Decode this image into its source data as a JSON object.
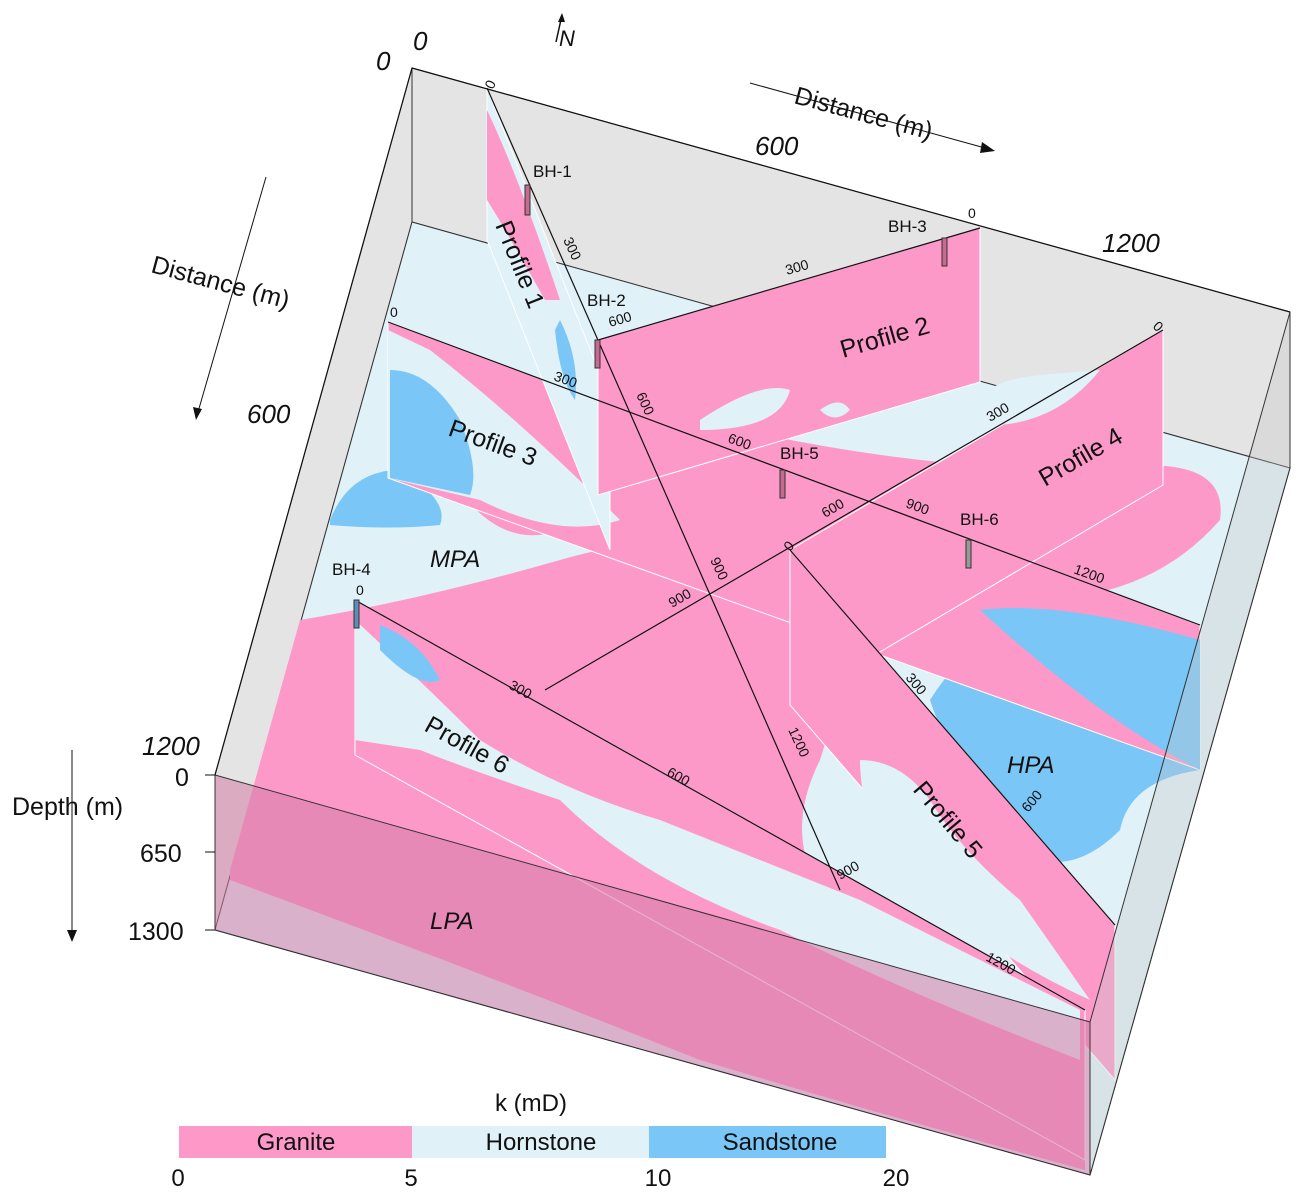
{
  "north_label": "N",
  "axes": {
    "top": {
      "label": "Distance (m)",
      "ticks": [
        "0",
        "600",
        "1200"
      ]
    },
    "left": {
      "label": "Distance (m)",
      "ticks": [
        "0",
        "600",
        "1200"
      ]
    },
    "depth": {
      "label": "Depth (m)",
      "ticks": [
        "0",
        "650",
        "1300"
      ]
    }
  },
  "profiles": [
    {
      "label": "Profile 1",
      "ticks": [
        "0",
        "300",
        "600",
        "900",
        "1200"
      ]
    },
    {
      "label": "Profile 2",
      "ticks": [
        "0",
        "300",
        "600"
      ]
    },
    {
      "label": "Profile 3",
      "ticks": [
        "0",
        "300",
        "600",
        "900",
        "1200"
      ]
    },
    {
      "label": "Profile 4",
      "ticks": [
        "0",
        "300",
        "600",
        "900"
      ]
    },
    {
      "label": "Profile 5",
      "ticks": [
        "0",
        "300",
        "600"
      ]
    },
    {
      "label": "Profile 6",
      "ticks": [
        "0",
        "300",
        "600",
        "900",
        "1200"
      ]
    }
  ],
  "boreholes": [
    "BH-1",
    "BH-2",
    "BH-3",
    "BH-4",
    "BH-5",
    "BH-6"
  ],
  "zones": [
    "MPA",
    "HPA",
    "LPA"
  ],
  "legend": {
    "title": "k (mD)",
    "items": [
      {
        "label": "Granite",
        "color": "#fd99c9"
      },
      {
        "label": "Hornstone",
        "color": "#e0f1f7"
      },
      {
        "label": "Sandstone",
        "color": "#79c6f7"
      }
    ],
    "ticks": [
      "0",
      "5",
      "10",
      "20"
    ]
  },
  "colors": {
    "granite": "#fd99c9",
    "hornstone": "#e0f1f7",
    "sandstone": "#79c6f7",
    "wall": "#e4e4e4"
  }
}
